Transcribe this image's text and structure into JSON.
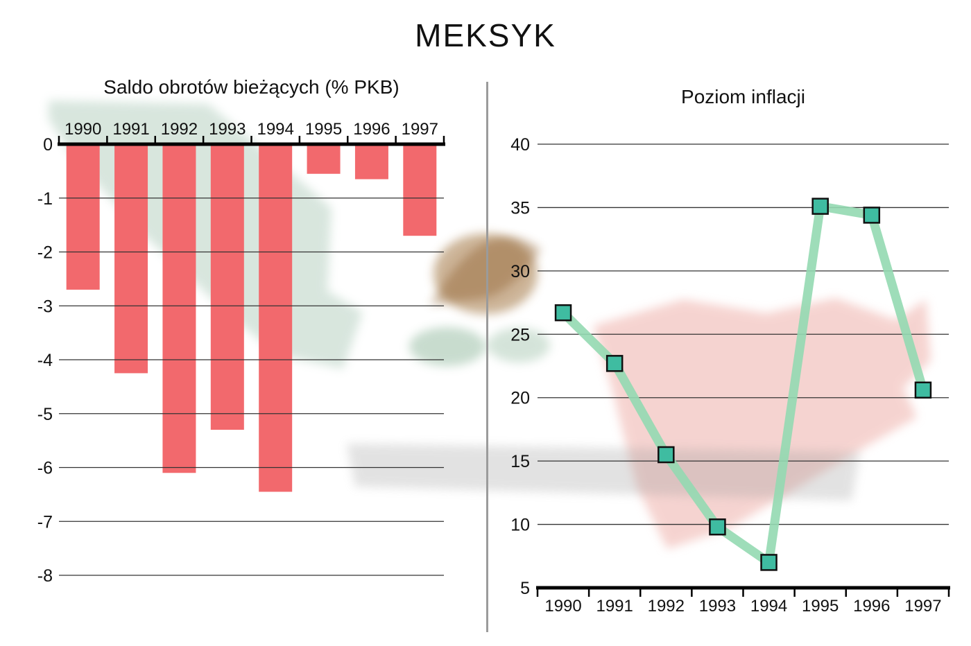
{
  "page": {
    "title": "MEKSYK"
  },
  "colors": {
    "bar_fill": "#f2696d",
    "line_stroke": "#93d9b1",
    "marker_fill": "#3fbca1",
    "marker_stroke": "#101010",
    "axis": "#000000",
    "grid": "#333333",
    "divider": "#9b9b9b",
    "watermark_green": "#a9c8b6",
    "watermark_red": "#eda9a2",
    "watermark_brown": "#9a6a30",
    "watermark_brown_dark": "#8a5a28",
    "watermark_laurel": "#86b294",
    "watermark_gray": "#9a9a9a"
  },
  "chart_data": [
    {
      "type": "bar",
      "title": "Saldo obrotów bieżących (% PKB)",
      "categories": [
        "1990",
        "1991",
        "1992",
        "1993",
        "1994",
        "1995",
        "1996",
        "1997"
      ],
      "values": [
        -2.7,
        -4.25,
        -6.1,
        -5.3,
        -6.45,
        -0.55,
        -0.65,
        -1.7
      ],
      "xlabel": "",
      "ylabel": "",
      "ylim": [
        -8,
        0
      ],
      "yticks": [
        0,
        -1,
        -2,
        -3,
        -4,
        -5,
        -6,
        -7,
        -8
      ],
      "grid": true,
      "category_axis_position": "top",
      "legend": "none"
    },
    {
      "type": "line",
      "title": "Poziom inflacji",
      "categories": [
        "1990",
        "1991",
        "1992",
        "1993",
        "1994",
        "1995",
        "1996",
        "1997"
      ],
      "values": [
        26.7,
        22.7,
        15.5,
        9.8,
        7.0,
        35.1,
        34.4,
        20.6
      ],
      "xlabel": "",
      "ylabel": "",
      "ylim": [
        5,
        40
      ],
      "yticks": [
        40,
        35,
        30,
        25,
        20,
        15,
        10,
        5
      ],
      "grid": true,
      "marker": "square",
      "category_axis_position": "bottom",
      "legend": "none"
    }
  ]
}
